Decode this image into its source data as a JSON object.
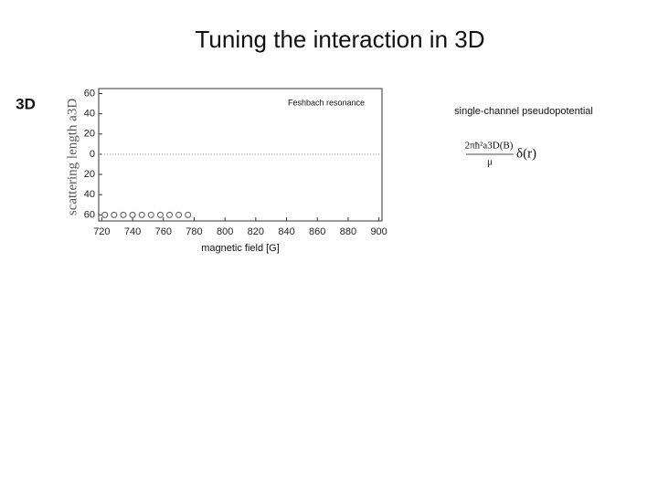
{
  "slide": {
    "title": "Tuning  the interaction in 3D",
    "label": "3D",
    "side_heading": "single-channel  pseudopotential",
    "formula": {
      "numerator": "2πħ²a3D(B)",
      "denominator": "μ",
      "factor": "δ(r)"
    }
  },
  "chart_data": {
    "type": "scatter",
    "annotation": "Feshbach resonance",
    "x_label": "magnetic field [G]",
    "y_label": "scattering length a3D",
    "x": [
      722,
      728,
      734,
      740,
      746,
      752,
      758,
      764,
      770,
      776
    ],
    "series": [
      {
        "color": "#555555",
        "values": [
          -60,
          -60,
          -60,
          -60,
          -60,
          -60,
          -60,
          -60,
          -60,
          -60
        ]
      }
    ],
    "xlim": [
      718,
      902
    ],
    "ylim": [
      -66,
      65
    ],
    "xticks": [
      720,
      740,
      760,
      780,
      800,
      820,
      840,
      860,
      880,
      900
    ],
    "yticks": [
      {
        "value": -60,
        "label": "60"
      },
      {
        "value": -40,
        "label": "40"
      },
      {
        "value": -20,
        "label": "20"
      },
      0,
      20,
      40,
      60
    ],
    "zero_line": true
  }
}
